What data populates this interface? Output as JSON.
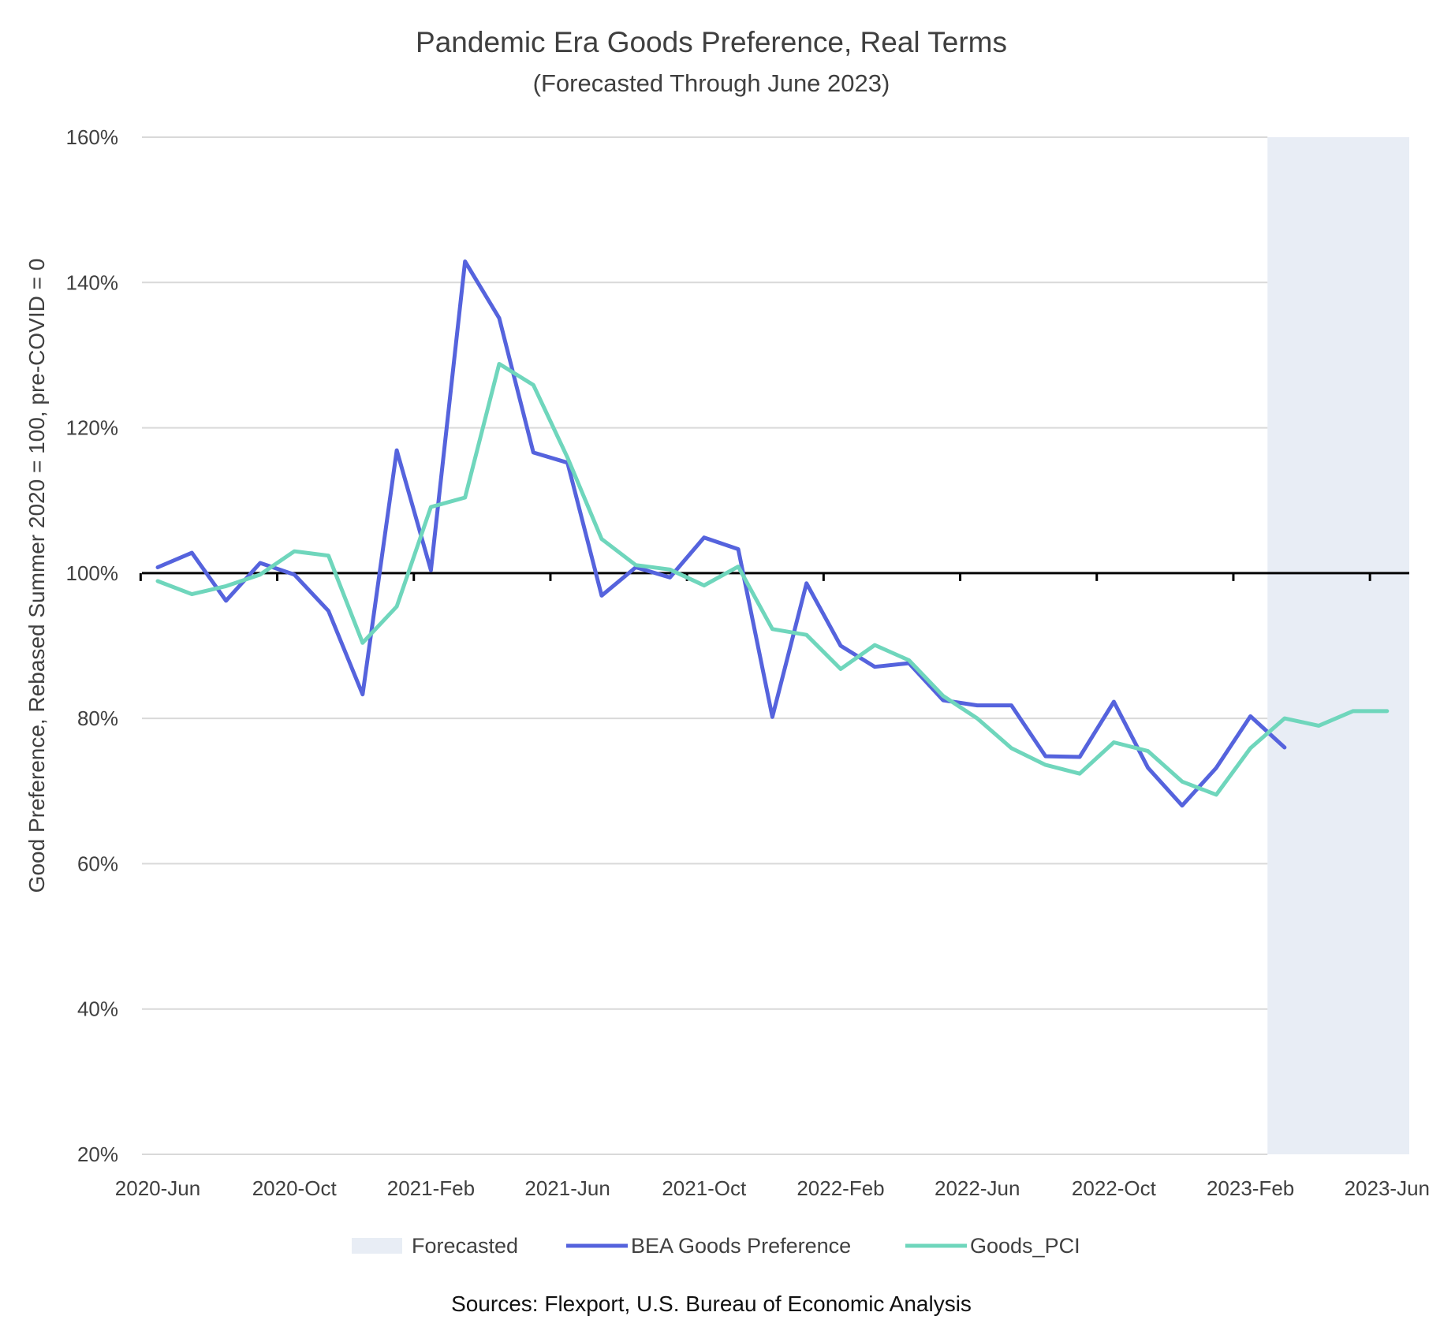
{
  "chart_data": {
    "type": "line",
    "title": "Pandemic Era Goods Preference, Real Terms",
    "subtitle": "(Forecasted Through June 2023)",
    "ylabel": "Good Preference, Rebased Summer 2020 = 100, pre-COVID = 0",
    "xlabel": "",
    "source": "Sources: Flexport, U.S. Bureau of Economic Analysis",
    "ylim": [
      20,
      160
    ],
    "yticks": [
      "20%",
      "40%",
      "60%",
      "80%",
      "100%",
      "120%",
      "140%",
      "160%"
    ],
    "ytick_values": [
      20,
      40,
      60,
      80,
      100,
      120,
      140,
      160
    ],
    "reference_line": 100,
    "grid": true,
    "legend_position": "bottom",
    "x_labels": [
      "2020-Jun",
      "2020-Oct",
      "2021-Feb",
      "2021-Jun",
      "2021-Oct",
      "2022-Feb",
      "2022-Jun",
      "2022-Oct",
      "2023-Feb",
      "2023-Jun"
    ],
    "x": [
      "2020-Jun",
      "2020-Jul",
      "2020-Aug",
      "2020-Sep",
      "2020-Oct",
      "2020-Nov",
      "2020-Dec",
      "2021-Jan",
      "2021-Feb",
      "2021-Mar",
      "2021-Apr",
      "2021-May",
      "2021-Jun",
      "2021-Jul",
      "2021-Aug",
      "2021-Sep",
      "2021-Oct",
      "2021-Nov",
      "2021-Dec",
      "2022-Jan",
      "2022-Feb",
      "2022-Mar",
      "2022-Apr",
      "2022-May",
      "2022-Jun",
      "2022-Jul",
      "2022-Aug",
      "2022-Sep",
      "2022-Oct",
      "2022-Nov",
      "2022-Dec",
      "2023-Jan",
      "2023-Feb",
      "2023-Mar",
      "2023-Apr",
      "2023-May",
      "2023-Jun"
    ],
    "forecast_band": {
      "name": "Forecasted",
      "start": "2023-Mar",
      "end": "2023-Jun",
      "color": "#e8edf5"
    },
    "series": [
      {
        "name": "BEA Goods Preference",
        "color": "#5563dd",
        "values": [
          100.8,
          102.8,
          96.2,
          101.4,
          99.8,
          94.8,
          83.3,
          116.9,
          100.4,
          142.9,
          135.1,
          116.6,
          115.2,
          96.9,
          100.8,
          99.4,
          104.9,
          103.3,
          80.2,
          98.6,
          90.0,
          87.1,
          87.6,
          82.5,
          81.8,
          81.8,
          74.8,
          74.7,
          82.3,
          73.2,
          68.0,
          73.2,
          80.3,
          76.0,
          null,
          null,
          null
        ]
      },
      {
        "name": "Goods_PCI",
        "color": "#6fd6bc",
        "values": [
          98.9,
          97.1,
          98.2,
          99.8,
          103.0,
          102.4,
          90.4,
          95.4,
          109.1,
          110.4,
          128.8,
          125.9,
          115.9,
          104.7,
          101.1,
          100.5,
          98.3,
          100.9,
          92.3,
          91.5,
          86.8,
          90.1,
          88.0,
          83.1,
          80.0,
          75.9,
          73.6,
          72.4,
          76.7,
          75.5,
          71.3,
          69.5,
          75.9,
          80.0,
          79.0,
          81.0,
          81.0
        ]
      }
    ]
  }
}
